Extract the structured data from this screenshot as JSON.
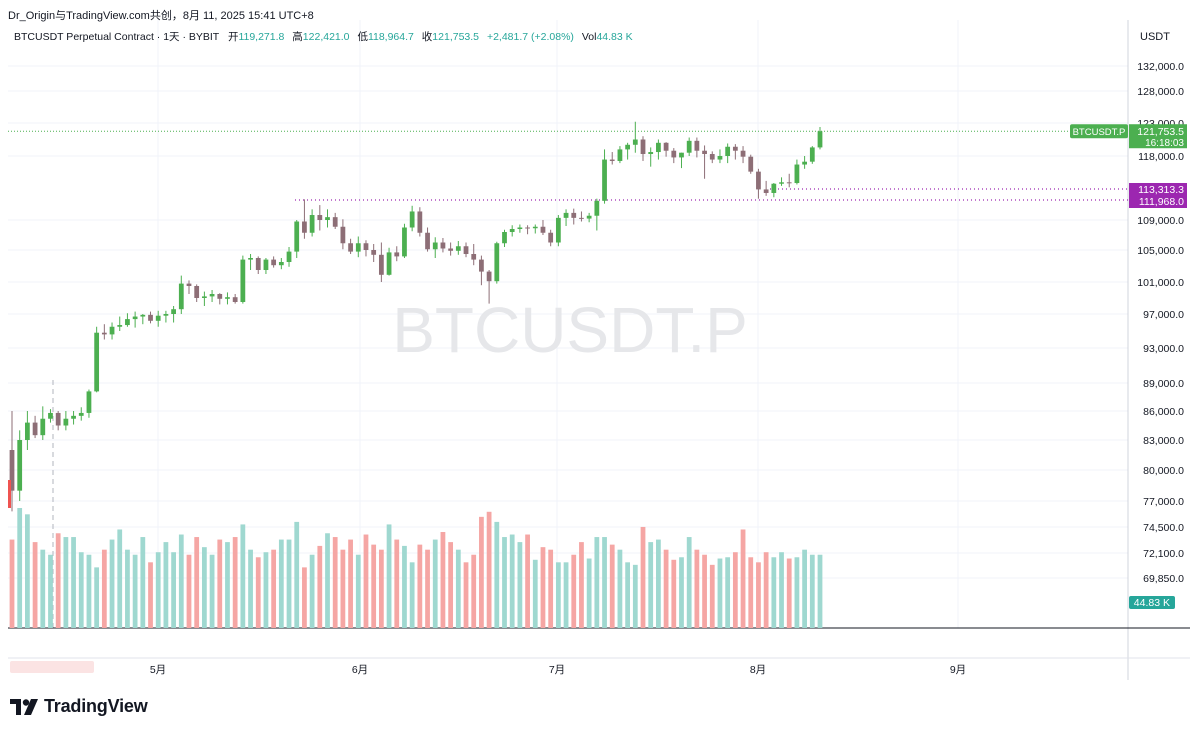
{
  "header": {
    "text": "Dr_Origin与TradingView.com共创，8月 11, 2025 15:41 UTC+8"
  },
  "legend": {
    "symbol": "BTCUSDT Perpetual Contract · 1天 · BYBIT",
    "open_label": "开",
    "open": "119,271.8",
    "high_label": "高",
    "high": "122,421.0",
    "low_label": "低",
    "low": "118,964.7",
    "close_label": "收",
    "close": "121,753.5",
    "change": "+2,481.7 (+2.08%)",
    "vol_label": "Vol",
    "vol": "44.83 K"
  },
  "watermark": "BTCUSDT.P",
  "currency": "USDT",
  "logo_text": "TradingView",
  "colors": {
    "up": "#26a69a",
    "down": "#ef5350",
    "candle_up": "#4caf50",
    "candle_down": "#8d6e76",
    "purple": "#9c27b0",
    "green_tag": "#4caf50",
    "vol_tag": "#26a69a"
  },
  "chart_data": {
    "type": "candlestick",
    "y_ticks": [
      "132,000.0",
      "128,000.0",
      "123,000.0",
      "118,000.0",
      "109,000.0",
      "105,000.0",
      "101,000.0",
      "97,000.0",
      "93,000.0",
      "89,000.0",
      "86,000.0",
      "83,000.0",
      "80,000.0",
      "77,000.0",
      "74,500.0",
      "72,100.0",
      "69,850.0"
    ],
    "x_ticks": [
      "5月",
      "6月",
      "7月",
      "8月",
      "9月"
    ],
    "last_price": {
      "symbol": "BTCUSDT.P",
      "price": "121,753.5",
      "countdown": "16:18:03"
    },
    "levels": [
      "113,313.3",
      "111,968.0"
    ],
    "volume_last": "44.83 K",
    "ohlc": [
      [
        82000,
        86000,
        76000,
        78000
      ],
      [
        78000,
        84000,
        77000,
        83000
      ],
      [
        83000,
        86000,
        82000,
        84800
      ],
      [
        84800,
        85500,
        83200,
        83500
      ],
      [
        83500,
        86500,
        83000,
        85200
      ],
      [
        85200,
        86200,
        84800,
        85800
      ],
      [
        85800,
        86000,
        84000,
        84500
      ],
      [
        84500,
        86000,
        84000,
        85200
      ],
      [
        85200,
        86000,
        84600,
        85500
      ],
      [
        85500,
        86400,
        85000,
        85800
      ],
      [
        85800,
        88300,
        85300,
        88100
      ],
      [
        88100,
        95500,
        88000,
        94800
      ],
      [
        94800,
        95800,
        94000,
        94600
      ],
      [
        94600,
        96000,
        94000,
        95500
      ],
      [
        95500,
        96700,
        95000,
        95700
      ],
      [
        95700,
        97100,
        95500,
        96400
      ],
      [
        96400,
        97300,
        95400,
        96700
      ],
      [
        96700,
        97000,
        95800,
        96900
      ],
      [
        96900,
        97300,
        95900,
        96200
      ],
      [
        96200,
        97400,
        95500,
        96800
      ],
      [
        96800,
        97400,
        96000,
        97000
      ],
      [
        97000,
        98000,
        96000,
        97600
      ],
      [
        97600,
        101800,
        97000,
        100800
      ],
      [
        100800,
        101200,
        99500,
        100500
      ],
      [
        100500,
        100700,
        98500,
        99000
      ],
      [
        99000,
        99800,
        98000,
        99200
      ],
      [
        99200,
        100000,
        98500,
        99500
      ],
      [
        99500,
        99600,
        98200,
        98900
      ],
      [
        98900,
        99700,
        98200,
        99100
      ],
      [
        99100,
        99500,
        98300,
        98500
      ],
      [
        98500,
        104300,
        98300,
        103800
      ],
      [
        103800,
        104500,
        102500,
        104000
      ],
      [
        104000,
        104200,
        102000,
        102500
      ],
      [
        102500,
        104000,
        102000,
        103800
      ],
      [
        103800,
        104200,
        102800,
        103100
      ],
      [
        103100,
        104000,
        102600,
        103500
      ],
      [
        103500,
        105400,
        102900,
        104800
      ],
      [
        104800,
        109000,
        104000,
        108800
      ],
      [
        108800,
        111900,
        106500,
        107300
      ],
      [
        107300,
        110500,
        106800,
        109700
      ],
      [
        109700,
        111100,
        107600,
        109000
      ],
      [
        109000,
        110500,
        108000,
        109400
      ],
      [
        109400,
        110000,
        107800,
        108100
      ],
      [
        108100,
        109100,
        105100,
        105900
      ],
      [
        105900,
        106500,
        104500,
        104800
      ],
      [
        104800,
        106800,
        104100,
        105900
      ],
      [
        105900,
        106300,
        104200,
        105000
      ],
      [
        105000,
        105800,
        103500,
        104400
      ],
      [
        104400,
        106000,
        101000,
        101900
      ],
      [
        101900,
        105300,
        101800,
        104700
      ],
      [
        104700,
        105500,
        103600,
        104200
      ],
      [
        104200,
        108500,
        104000,
        108000
      ],
      [
        108000,
        111000,
        107500,
        110200
      ],
      [
        110200,
        110800,
        106800,
        107300
      ],
      [
        107300,
        108000,
        104800,
        105100
      ],
      [
        105100,
        106700,
        104000,
        106000
      ],
      [
        106000,
        106600,
        104700,
        105200
      ],
      [
        105200,
        106000,
        104300,
        104900
      ],
      [
        104900,
        106200,
        104400,
        105500
      ],
      [
        105500,
        106000,
        104100,
        104500
      ],
      [
        104500,
        105800,
        103100,
        103800
      ],
      [
        103800,
        104300,
        100600,
        102300
      ],
      [
        102300,
        102500,
        98300,
        101100
      ],
      [
        101100,
        106100,
        100800,
        105900
      ],
      [
        105900,
        107700,
        105400,
        107400
      ],
      [
        107400,
        108300,
        106800,
        107800
      ],
      [
        107800,
        108400,
        107300,
        108000
      ],
      [
        108000,
        108300,
        107100,
        107900
      ],
      [
        107900,
        108400,
        107200,
        108100
      ],
      [
        108100,
        109000,
        107000,
        107300
      ],
      [
        107300,
        107700,
        105500,
        106000
      ],
      [
        106000,
        109700,
        105500,
        109300
      ],
      [
        109300,
        110500,
        108200,
        110000
      ],
      [
        110000,
        110600,
        108400,
        109300
      ],
      [
        109300,
        110200,
        108800,
        109200
      ],
      [
        109200,
        110000,
        108700,
        109600
      ],
      [
        109600,
        112000,
        107600,
        111700
      ],
      [
        111700,
        119000,
        111300,
        117500
      ],
      [
        117500,
        118600,
        116800,
        117300
      ],
      [
        117300,
        119500,
        117000,
        119000
      ],
      [
        119000,
        120000,
        117500,
        119700
      ],
      [
        119700,
        123200,
        118500,
        120500
      ],
      [
        120500,
        121000,
        117300,
        118300
      ],
      [
        118300,
        119300,
        116500,
        118600
      ],
      [
        118600,
        120500,
        117500,
        120000
      ],
      [
        120000,
        120100,
        117900,
        118800
      ],
      [
        118800,
        119200,
        117000,
        117800
      ],
      [
        117800,
        118500,
        116300,
        118500
      ],
      [
        118500,
        120800,
        118000,
        120300
      ],
      [
        120300,
        120800,
        117800,
        118800
      ],
      [
        118800,
        119600,
        114800,
        118300
      ],
      [
        118300,
        118700,
        117000,
        117500
      ],
      [
        117500,
        119000,
        117000,
        118000
      ],
      [
        118000,
        119900,
        117000,
        119400
      ],
      [
        119400,
        119800,
        117500,
        118800
      ],
      [
        118800,
        119500,
        117000,
        117900
      ],
      [
        117900,
        118200,
        115500,
        115800
      ],
      [
        115800,
        116200,
        112000,
        113300
      ],
      [
        113300,
        114500,
        112400,
        112800
      ],
      [
        112800,
        114200,
        112200,
        114100
      ],
      [
        114100,
        115000,
        113800,
        114300
      ],
      [
        114300,
        115500,
        113600,
        114200
      ],
      [
        114200,
        117500,
        114000,
        116800
      ],
      [
        116800,
        118000,
        116200,
        117200
      ],
      [
        117200,
        119500,
        116900,
        119300
      ],
      [
        119300,
        122400,
        119000,
        121750
      ]
    ],
    "volume": [
      70,
      95,
      90,
      68,
      62,
      58,
      75,
      72,
      72,
      60,
      58,
      48,
      62,
      70,
      78,
      62,
      58,
      72,
      52,
      60,
      68,
      60,
      74,
      58,
      72,
      64,
      58,
      70,
      68,
      72,
      82,
      62,
      56,
      60,
      62,
      70,
      70,
      84,
      48,
      58,
      65,
      75,
      72,
      62,
      70,
      58,
      74,
      66,
      62,
      82,
      70,
      65,
      52,
      66,
      62,
      70,
      76,
      68,
      62,
      52,
      58,
      88,
      92,
      84,
      72,
      74,
      68,
      74,
      54,
      64,
      62,
      52,
      52,
      58,
      68,
      55,
      72,
      72,
      66,
      62,
      52,
      50,
      80,
      68,
      70,
      62,
      54,
      56,
      72,
      62,
      58,
      50,
      55,
      56,
      60,
      78,
      56,
      52,
      60,
      56,
      60,
      55,
      56,
      62,
      58,
      58
    ]
  }
}
